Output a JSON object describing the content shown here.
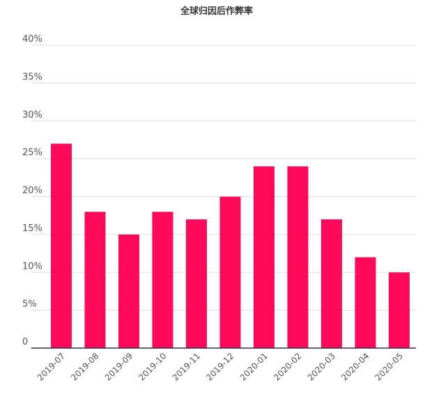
{
  "chart_data": {
    "type": "bar",
    "title": "全球归因后作弊率",
    "xlabel": "",
    "ylabel": "",
    "categories": [
      "2019-07",
      "2019-08",
      "2019-09",
      "2019-10",
      "2019-11",
      "2019-12",
      "2020-01",
      "2020-02",
      "2020-03",
      "2020-04",
      "2020-05"
    ],
    "values": [
      27,
      18,
      15,
      18,
      17,
      20,
      24,
      24,
      17,
      12,
      10
    ],
    "ylim": [
      0,
      40
    ],
    "yticks": [
      {
        "value": 0,
        "label": "0"
      },
      {
        "value": 5,
        "label": "5%"
      },
      {
        "value": 10,
        "label": "10%"
      },
      {
        "value": 15,
        "label": "15%"
      },
      {
        "value": 20,
        "label": "20%"
      },
      {
        "value": 25,
        "label": "25%"
      },
      {
        "value": 30,
        "label": "30%"
      },
      {
        "value": 35,
        "label": "35%"
      },
      {
        "value": 40,
        "label": "40%"
      }
    ],
    "grid": true,
    "legend": "none",
    "bar_color": "#ff0a5a"
  }
}
